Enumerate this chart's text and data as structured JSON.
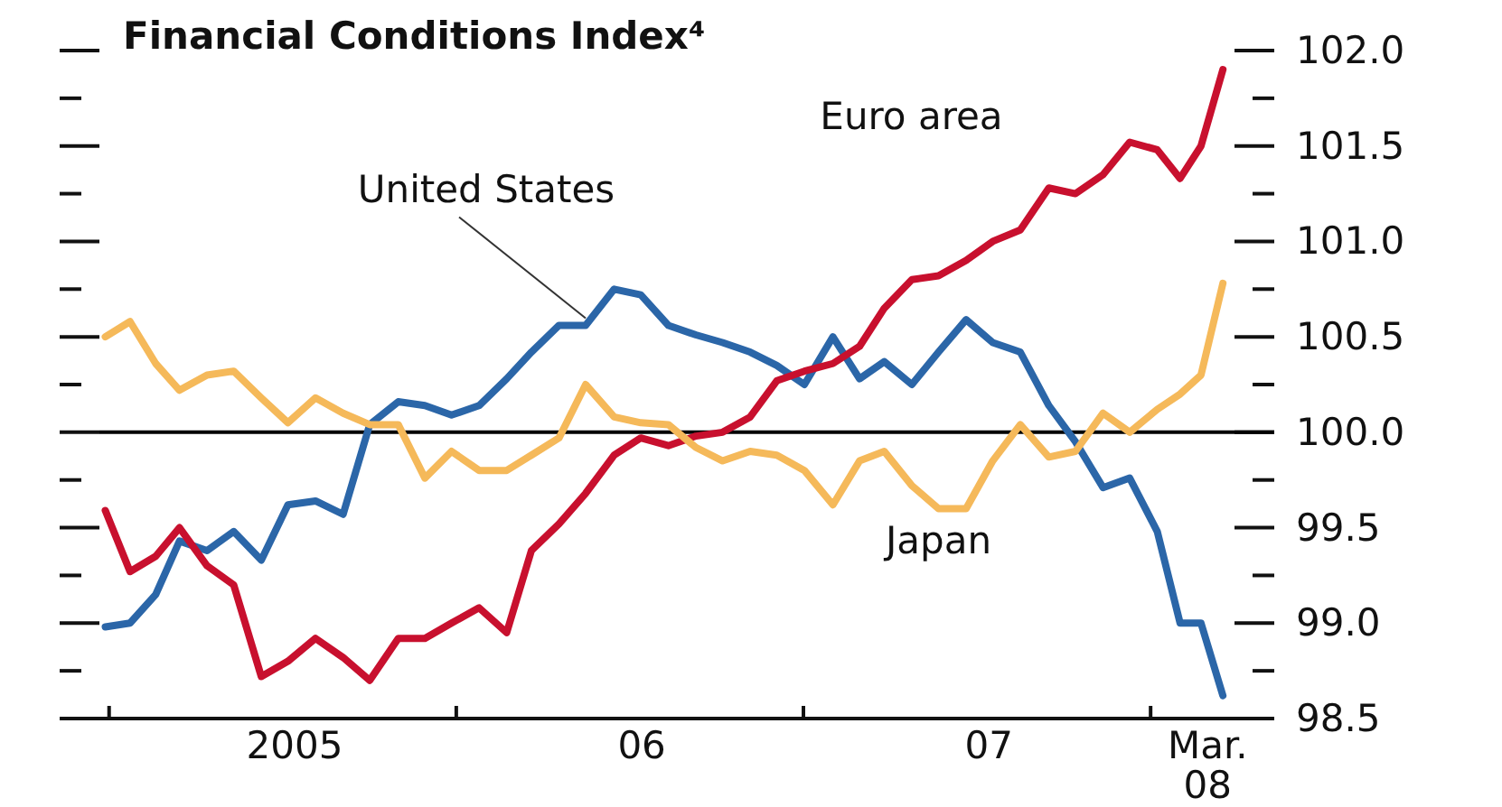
{
  "chart_data": {
    "type": "line",
    "title": "Financial Conditions Index⁴",
    "x": [
      "2004-12-28",
      "2005-01-23",
      "2005-02-19",
      "2005-03-16",
      "2005-04-14",
      "2005-05-12",
      "2005-06-10",
      "2005-07-08",
      "2005-08-06",
      "2005-09-04",
      "2005-10-02",
      "2005-11-01",
      "2005-11-29",
      "2005-12-27",
      "2006-01-25",
      "2006-02-23",
      "2006-03-21",
      "2006-04-19",
      "2006-05-17",
      "2006-06-16",
      "2006-07-14",
      "2006-08-12",
      "2006-09-10",
      "2006-10-08",
      "2006-11-06",
      "2006-12-04",
      "2007-01-02",
      "2007-02-01",
      "2007-03-01",
      "2007-03-27",
      "2007-04-25",
      "2007-05-23",
      "2007-06-21",
      "2007-07-19",
      "2007-08-17",
      "2007-09-16",
      "2007-10-14",
      "2007-11-12",
      "2007-12-10",
      "2008-01-08",
      "2008-02-01",
      "2008-02-23",
      "2008-03-17"
    ],
    "series": [
      {
        "name": "United States",
        "color": "#2b66a8",
        "values": [
          98.98,
          99.0,
          99.15,
          99.43,
          99.38,
          99.48,
          99.33,
          99.62,
          99.64,
          99.57,
          100.04,
          100.16,
          100.14,
          100.09,
          100.14,
          100.28,
          100.42,
          100.56,
          100.56,
          100.75,
          100.72,
          100.56,
          100.51,
          100.47,
          100.42,
          100.35,
          100.25,
          100.5,
          100.28,
          100.37,
          100.25,
          100.42,
          100.59,
          100.47,
          100.42,
          100.14,
          99.95,
          99.71,
          99.76,
          99.48,
          99.0,
          99.0,
          98.62
        ]
      },
      {
        "name": "Euro area",
        "color": "#c8102e",
        "values": [
          99.59,
          99.27,
          99.35,
          99.5,
          99.3,
          99.2,
          98.72,
          98.8,
          98.92,
          98.82,
          98.7,
          98.92,
          98.92,
          99.0,
          99.08,
          98.95,
          99.38,
          99.52,
          99.68,
          99.88,
          99.97,
          99.93,
          99.98,
          100.0,
          100.08,
          100.27,
          100.32,
          100.36,
          100.45,
          100.65,
          100.8,
          100.82,
          100.9,
          101.0,
          101.06,
          101.28,
          101.25,
          101.35,
          101.52,
          101.48,
          101.33,
          101.5,
          101.9
        ]
      },
      {
        "name": "Japan",
        "color": "#f5b95a",
        "values": [
          100.5,
          100.58,
          100.36,
          100.22,
          100.3,
          100.32,
          100.18,
          100.05,
          100.18,
          100.1,
          100.04,
          100.04,
          99.76,
          99.9,
          99.8,
          99.8,
          99.88,
          99.97,
          100.25,
          100.08,
          100.05,
          100.04,
          99.92,
          99.85,
          99.9,
          99.88,
          99.8,
          99.62,
          99.85,
          99.9,
          99.72,
          99.6,
          99.6,
          99.85,
          100.04,
          99.87,
          99.9,
          100.1,
          100.0,
          100.12,
          100.2,
          100.3,
          100.78
        ]
      }
    ],
    "xlim": [
      "2004-11-10",
      "2008-05-10"
    ],
    "xticks": [
      {
        "value": "2005-01-01",
        "label": null
      },
      {
        "value": "2005-07-15",
        "label": "2005"
      },
      {
        "value": "2006-01-01",
        "label": null
      },
      {
        "value": "2006-07-15",
        "label": "06"
      },
      {
        "value": "2007-01-01",
        "label": null
      },
      {
        "value": "2007-07-15",
        "label": "07"
      },
      {
        "value": "2008-01-01",
        "label": null
      },
      {
        "value": "2008-03-01",
        "label": "Mar. 08"
      }
    ],
    "ylim": [
      98.5,
      102.0
    ],
    "yticks": [
      {
        "value": 98.5,
        "label": "98.5"
      },
      {
        "value": 98.75,
        "label": null
      },
      {
        "value": 99.0,
        "label": "99.0"
      },
      {
        "value": 99.25,
        "label": null
      },
      {
        "value": 99.5,
        "label": "99.5"
      },
      {
        "value": 99.75,
        "label": null
      },
      {
        "value": 100.0,
        "label": "100.0"
      },
      {
        "value": 100.25,
        "label": null
      },
      {
        "value": 100.5,
        "label": "100.5"
      },
      {
        "value": 100.75,
        "label": null
      },
      {
        "value": 101.0,
        "label": "101.0"
      },
      {
        "value": 101.25,
        "label": null
      },
      {
        "value": 101.5,
        "label": "101.5"
      },
      {
        "value": 101.75,
        "label": null
      },
      {
        "value": 102.0,
        "label": "102.0"
      }
    ],
    "ref_lines": [
      {
        "axis": "y",
        "value": 100.0,
        "color": "#000000"
      }
    ],
    "grid": false,
    "marker": "none",
    "line_style": "solid"
  }
}
